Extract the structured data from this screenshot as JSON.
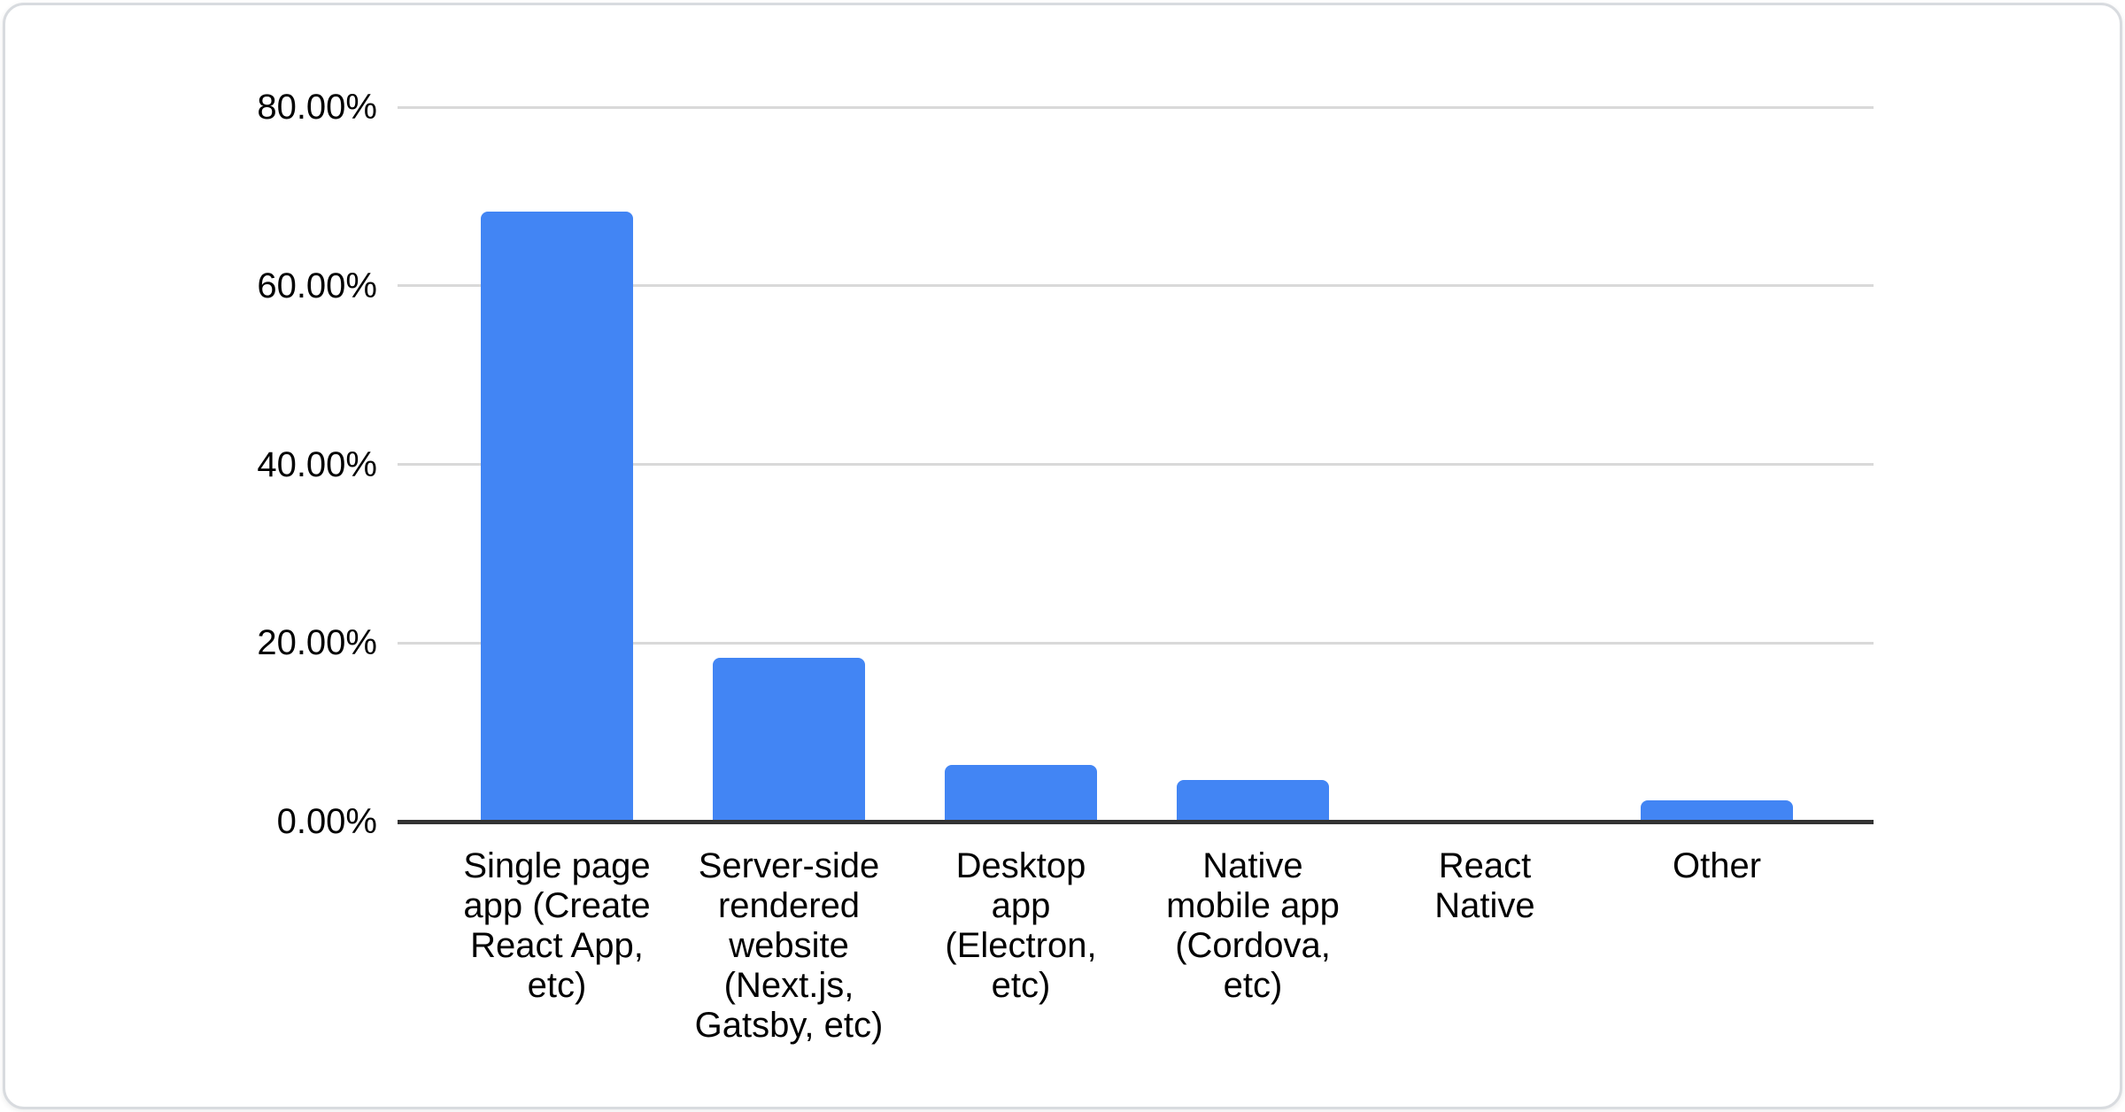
{
  "chart_data": {
    "type": "bar",
    "title": "",
    "xlabel": "",
    "ylabel": "",
    "categories": [
      "Single page app (Create React App, etc)",
      "Server-side rendered website (Next.js, Gatsby, etc)",
      "Desktop app (Electron, etc)",
      "Native mobile app (Cordova, etc)",
      "React Native",
      "Other"
    ],
    "values": [
      68.3,
      18.3,
      6.3,
      4.7,
      0,
      2.4
    ],
    "value_format": "percent",
    "x_axis": {
      "tick_label_lines": [
        [
          "Single page",
          "app (Create",
          "React App,",
          "etc)"
        ],
        [
          "Server-side",
          "rendered",
          "website",
          "(Next.js,",
          "Gatsby, etc)"
        ],
        [
          "Desktop",
          "app",
          "(Electron,",
          "etc)"
        ],
        [
          "Native",
          "mobile app",
          "(Cordova,",
          "etc)"
        ],
        [
          "React",
          "Native"
        ],
        [
          "Other"
        ]
      ]
    },
    "y_axis": {
      "tick_values": [
        0,
        20,
        40,
        60,
        80
      ],
      "tick_labels": [
        "0.00%",
        "20.00%",
        "40.00%",
        "60.00%",
        "80.00%"
      ]
    },
    "ylim": [
      0,
      80
    ],
    "grid": true,
    "legend": "none",
    "colors": {
      "bar": "#4285f4",
      "grid": "#d9d9d9",
      "axis_line": "#333333",
      "text": "#000000",
      "card_border": "#d8dbdf",
      "background": "#ffffff"
    }
  }
}
